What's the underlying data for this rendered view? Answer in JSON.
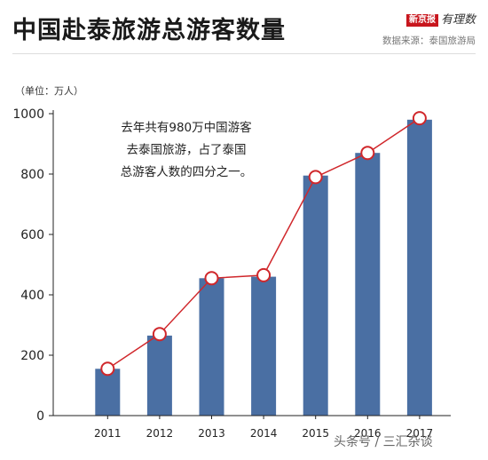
{
  "header": {
    "title": "中国赴泰旅游总游客数量",
    "brand_badge": "新京报",
    "brand_script": "有理数",
    "source": "数据来源：泰国旅游局"
  },
  "annotation": {
    "lines": [
      "去年共有980万中国游客",
      "去泰国旅游，占了泰国",
      "总游客人数的四分之一。"
    ]
  },
  "watermark": "头条号 / 三汇杂谈",
  "colors": {
    "bar": "#4a6fa3",
    "line": "#d0272b",
    "axis": "#222222"
  },
  "chart_data": {
    "type": "bar",
    "title": "中国赴泰旅游总游客数量",
    "unit_label": "（单位：万人）",
    "categories": [
      "2011",
      "2012",
      "2013",
      "2014",
      "2015",
      "2016",
      "2017"
    ],
    "series": [
      {
        "values": [
          155,
          265,
          455,
          460,
          795,
          870,
          980
        ]
      }
    ],
    "overlay_line": {
      "values": [
        155,
        270,
        455,
        465,
        790,
        870,
        985
      ]
    },
    "yticks": [
      0,
      200,
      400,
      600,
      800,
      1000
    ],
    "ylim": [
      0,
      1000
    ],
    "grid": false,
    "legend": "none"
  }
}
